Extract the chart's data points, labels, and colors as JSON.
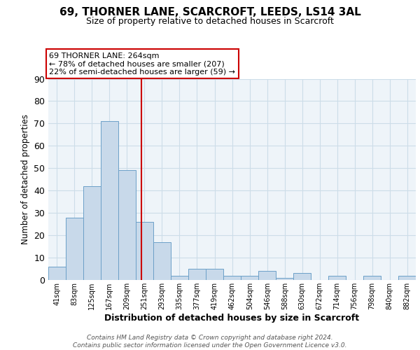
{
  "title1": "69, THORNER LANE, SCARCROFT, LEEDS, LS14 3AL",
  "title2": "Size of property relative to detached houses in Scarcroft",
  "xlabel": "Distribution of detached houses by size in Scarcroft",
  "ylabel": "Number of detached properties",
  "bin_labels": [
    "41sqm",
    "83sqm",
    "125sqm",
    "167sqm",
    "209sqm",
    "251sqm",
    "293sqm",
    "335sqm",
    "377sqm",
    "419sqm",
    "462sqm",
    "504sqm",
    "546sqm",
    "588sqm",
    "630sqm",
    "672sqm",
    "714sqm",
    "756sqm",
    "798sqm",
    "840sqm",
    "882sqm"
  ],
  "bin_edges": [
    41,
    83,
    125,
    167,
    209,
    251,
    293,
    335,
    377,
    419,
    462,
    504,
    546,
    588,
    630,
    672,
    714,
    756,
    798,
    840,
    882,
    924
  ],
  "counts": [
    6,
    28,
    42,
    71,
    49,
    26,
    17,
    2,
    5,
    5,
    2,
    2,
    4,
    1,
    3,
    0,
    2,
    0,
    2,
    0,
    2
  ],
  "bar_color": "#c8d9ea",
  "bar_edge_color": "#6ca0c8",
  "property_value": 264,
  "red_line_color": "#cc0000",
  "annotation_line1": "69 THORNER LANE: 264sqm",
  "annotation_line2": "← 78% of detached houses are smaller (207)",
  "annotation_line3": "22% of semi-detached houses are larger (59) →",
  "annotation_box_color": "#ffffff",
  "annotation_box_edge_color": "#cc0000",
  "ylim": [
    0,
    90
  ],
  "yticks": [
    0,
    10,
    20,
    30,
    40,
    50,
    60,
    70,
    80,
    90
  ],
  "footer_text": "Contains HM Land Registry data © Crown copyright and database right 2024.\nContains public sector information licensed under the Open Government Licence v3.0.",
  "grid_color": "#ccdde8",
  "bg_color": "#eef4f9"
}
